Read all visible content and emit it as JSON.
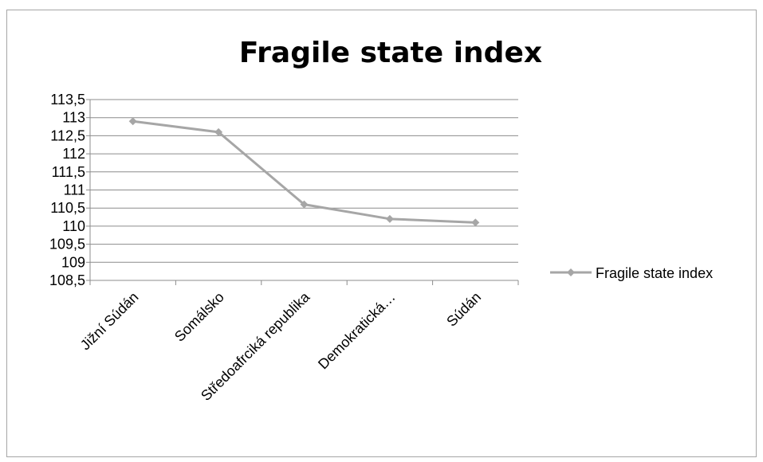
{
  "chart_data": {
    "type": "line",
    "title": "Fragile state index",
    "xlabel": "",
    "ylabel": "",
    "categories": [
      "Jižní Súdán",
      "Somálsko",
      "Středoafrciká republika",
      "Demokratická…",
      "Súdán"
    ],
    "series": [
      {
        "name": "Fragile state index",
        "values": [
          112.9,
          112.6,
          110.6,
          110.2,
          110.1
        ]
      }
    ],
    "ylim": [
      108.5,
      113.5
    ],
    "yticks": [
      "113,5",
      "113",
      "112,5",
      "112",
      "111,5",
      "111",
      "110,5",
      "110",
      "109,5",
      "109",
      "108,5"
    ],
    "grid": true,
    "legend_position": "right",
    "series_color": "#a6a6a6"
  }
}
